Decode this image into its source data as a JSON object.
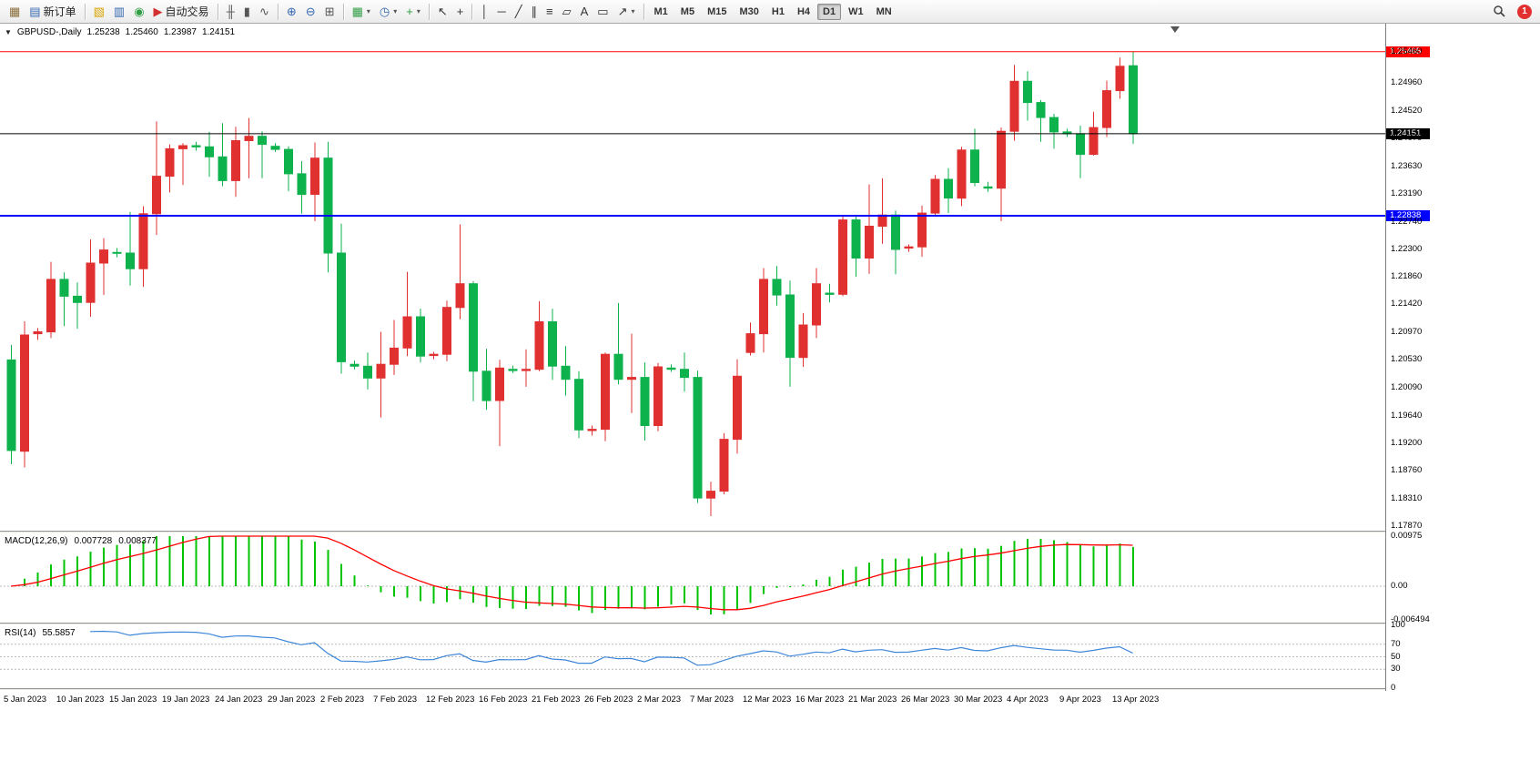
{
  "toolbar": {
    "groups": [
      {
        "items": [
          {
            "name": "new-chart-button",
            "glyph": "▦",
            "color": "#8a6d3b"
          },
          {
            "name": "new-order-button",
            "glyph": "▤",
            "color": "#3367b0",
            "label": "新订单"
          }
        ]
      },
      {
        "items": [
          {
            "name": "profiles-button",
            "glyph": "▧",
            "color": "#d9a400"
          },
          {
            "name": "market-watch-button",
            "glyph": "▥",
            "color": "#3367b0"
          },
          {
            "name": "navigator-button",
            "glyph": "◉",
            "color": "#2f9e44"
          },
          {
            "name": "autotrading-button",
            "glyph": "▶",
            "color": "#d32f2f",
            "label": "自动交易"
          }
        ]
      },
      {
        "items": [
          {
            "name": "bar-chart-mode-button",
            "glyph": "╫",
            "color": "#555555"
          },
          {
            "name": "candle-chart-mode-button",
            "glyph": "▮",
            "color": "#555555"
          },
          {
            "name": "line-chart-mode-button",
            "glyph": "∿",
            "color": "#555555"
          }
        ]
      },
      {
        "items": [
          {
            "name": "zoom-in-button",
            "glyph": "⊕",
            "color": "#3367b0"
          },
          {
            "name": "zoom-out-button",
            "glyph": "⊖",
            "color": "#3367b0"
          },
          {
            "name": "tile-windows-button",
            "glyph": "⊞",
            "color": "#555555"
          }
        ]
      },
      {
        "items": [
          {
            "name": "new-chart-dropdown-button",
            "glyph": "▦",
            "color": "#2f9e44",
            "caret": true
          },
          {
            "name": "periods-dropdown-button",
            "glyph": "◷",
            "color": "#3367b0",
            "caret": true
          },
          {
            "name": "indicators-dropdown-button",
            "glyph": "+",
            "color": "#2f9e44",
            "caret": true
          }
        ]
      },
      {
        "items": [
          {
            "name": "cursor-button",
            "glyph": "↖",
            "color": "#333333"
          },
          {
            "name": "crosshair-button",
            "glyph": "+",
            "color": "#333333"
          }
        ]
      },
      {
        "items": [
          {
            "name": "vertical-line-button",
            "glyph": "│",
            "color": "#333333"
          },
          {
            "name": "horizontal-line-button",
            "glyph": "─",
            "color": "#333333"
          },
          {
            "name": "trendline-button",
            "glyph": "╱",
            "color": "#333333"
          },
          {
            "name": "channel-button",
            "glyph": "∥",
            "color": "#333333"
          },
          {
            "name": "fibonacci-button",
            "glyph": "≡",
            "color": "#333333"
          },
          {
            "name": "shapes-button",
            "glyph": "▱",
            "color": "#333333"
          },
          {
            "name": "text-button",
            "glyph": "A",
            "color": "#333333"
          },
          {
            "name": "text-label-button",
            "glyph": "▭",
            "color": "#333333"
          },
          {
            "name": "arrows-dropdown-button",
            "glyph": "↗",
            "color": "#333333",
            "caret": true
          }
        ]
      }
    ],
    "timeframes": {
      "items": [
        "M1",
        "M5",
        "M15",
        "M30",
        "H1",
        "H4",
        "D1",
        "W1",
        "MN"
      ],
      "active": "D1"
    },
    "notification_count": "1"
  },
  "chart": {
    "info": {
      "expand_icon": "▼",
      "symbol": "GBPUSD-,Daily",
      "open": "1.25238",
      "high": "1.25460",
      "low": "1.23987",
      "close": "1.24151"
    }
  },
  "indicators": {
    "macd": {
      "title": "MACD(12,26,9)",
      "value_main": "0.007728",
      "value_signal": "0.008377",
      "scale": [
        "0.00975",
        "0.00",
        "-0.006494"
      ]
    },
    "rsi": {
      "title": "RSI(14)",
      "value": "55.5857",
      "scale": [
        "100",
        "70",
        "50",
        "30",
        "0"
      ],
      "levels": [
        70,
        50,
        30
      ]
    }
  },
  "chart_data": {
    "type": "candlestick",
    "symbol": "GBPUSD",
    "timeframe": "Daily",
    "note_color_convention": "red = bullish (up), green = bearish (down)",
    "colors": {
      "up": "#e03030",
      "down": "#0db24c",
      "macd_hist": "#00c400",
      "macd_signal": "#ff0000",
      "rsi_line": "#3f87d9"
    },
    "price_axis": {
      "labels": [
        "1.25460",
        "1.24960",
        "1.24520",
        "1.24070",
        "1.23630",
        "1.23190",
        "1.22740",
        "1.22300",
        "1.21860",
        "1.21420",
        "1.20970",
        "1.20530",
        "1.20090",
        "1.19640",
        "1.19200",
        "1.18760",
        "1.18310",
        "1.17870"
      ]
    },
    "hlines": [
      {
        "name": "resistance-line",
        "price": 1.25465,
        "color": "#ff0000",
        "tag": "1.25465",
        "width": 1
      },
      {
        "name": "current-price-line",
        "price": 1.24151,
        "color": "#000000",
        "tag": "1.24151",
        "width": 1
      },
      {
        "name": "support-line",
        "price": 1.22838,
        "color": "#0000ff",
        "tag": "1.22838",
        "width": 2
      }
    ],
    "date_axis": [
      {
        "label": "5 Jan 2023",
        "index": 0
      },
      {
        "label": "10 Jan 2023",
        "index": 4
      },
      {
        "label": "15 Jan 2023",
        "index": 8
      },
      {
        "label": "19 Jan 2023",
        "index": 12
      },
      {
        "label": "24 Jan 2023",
        "index": 16
      },
      {
        "label": "29 Jan 2023",
        "index": 20
      },
      {
        "label": "2 Feb 2023",
        "index": 24
      },
      {
        "label": "7 Feb 2023",
        "index": 28
      },
      {
        "label": "12 Feb 2023",
        "index": 32
      },
      {
        "label": "16 Feb 2023",
        "index": 36
      },
      {
        "label": "21 Feb 2023",
        "index": 40
      },
      {
        "label": "26 Feb 2023",
        "index": 44
      },
      {
        "label": "2 Mar 2023",
        "index": 48
      },
      {
        "label": "7 Mar 2023",
        "index": 52
      },
      {
        "label": "12 Mar 2023",
        "index": 56
      },
      {
        "label": "16 Mar 2023",
        "index": 60
      },
      {
        "label": "21 Mar 2023",
        "index": 64
      },
      {
        "label": "26 Mar 2023",
        "index": 68
      },
      {
        "label": "30 Mar 2023",
        "index": 72
      },
      {
        "label": "4 Apr 2023",
        "index": 76
      },
      {
        "label": "9 Apr 2023",
        "index": 80
      },
      {
        "label": "13 Apr 2023",
        "index": 84
      }
    ],
    "candles": [
      [
        "2023.01.05",
        1.2053,
        1.2077,
        1.1886,
        1.1908
      ],
      [
        "2023.01.06",
        1.1907,
        1.2115,
        1.1881,
        1.2093
      ],
      [
        "2023.01.08",
        1.2095,
        1.2104,
        1.2085,
        1.2098
      ],
      [
        "2023.01.09",
        1.2098,
        1.221,
        1.2088,
        1.2182
      ],
      [
        "2023.01.10",
        1.2182,
        1.2193,
        1.2107,
        1.2155
      ],
      [
        "2023.01.11",
        1.2155,
        1.2177,
        1.2103,
        1.2145
      ],
      [
        "2023.01.12",
        1.2145,
        1.2246,
        1.2122,
        1.2208
      ],
      [
        "2023.01.13",
        1.2208,
        1.2248,
        1.2157,
        1.2229
      ],
      [
        "2023.01.15",
        1.2225,
        1.2232,
        1.2217,
        1.2224
      ],
      [
        "2023.01.16",
        1.2224,
        1.229,
        1.2172,
        1.2199
      ],
      [
        "2023.01.17",
        1.2199,
        1.2299,
        1.217,
        1.2287
      ],
      [
        "2023.01.18",
        1.2287,
        1.2435,
        1.2253,
        1.2347
      ],
      [
        "2023.01.19",
        1.2347,
        1.2398,
        1.2321,
        1.2391
      ],
      [
        "2023.01.20",
        1.2391,
        1.24,
        1.2333,
        1.2396
      ],
      [
        "2023.01.22",
        1.2396,
        1.2402,
        1.2388,
        1.2394
      ],
      [
        "2023.01.23",
        1.2394,
        1.2418,
        1.2346,
        1.2378
      ],
      [
        "2023.01.24",
        1.2378,
        1.2432,
        1.2331,
        1.234
      ],
      [
        "2023.01.25",
        1.234,
        1.2426,
        1.2314,
        1.2404
      ],
      [
        "2023.01.26",
        1.2404,
        1.244,
        1.2344,
        1.2411
      ],
      [
        "2023.01.27",
        1.2411,
        1.2419,
        1.2344,
        1.2398
      ],
      [
        "2023.01.29",
        1.2395,
        1.24,
        1.2386,
        1.239
      ],
      [
        "2023.01.30",
        1.239,
        1.2395,
        1.2323,
        1.2351
      ],
      [
        "2023.01.31",
        1.2351,
        1.2371,
        1.2287,
        1.2318
      ],
      [
        "2023.02.01",
        1.2318,
        1.2401,
        1.2275,
        1.2376
      ],
      [
        "2023.02.02",
        1.2376,
        1.2402,
        1.2193,
        1.2224
      ],
      [
        "2023.02.03",
        1.2224,
        1.2271,
        1.2031,
        1.205
      ],
      [
        "2023.02.05",
        1.2046,
        1.2052,
        1.2038,
        1.2043
      ],
      [
        "2023.02.06",
        1.2043,
        1.2065,
        1.2006,
        1.2024
      ],
      [
        "2023.02.07",
        1.2024,
        1.2098,
        1.1961,
        1.2046
      ],
      [
        "2023.02.08",
        1.2046,
        1.2117,
        1.2029,
        1.2072
      ],
      [
        "2023.02.09",
        1.2072,
        1.2194,
        1.2059,
        1.2122
      ],
      [
        "2023.02.10",
        1.2122,
        1.2135,
        1.2049,
        1.2059
      ],
      [
        "2023.02.12",
        1.206,
        1.2066,
        1.2054,
        1.2062
      ],
      [
        "2023.02.13",
        1.2062,
        1.2148,
        1.2051,
        1.2137
      ],
      [
        "2023.02.14",
        1.2137,
        1.227,
        1.2118,
        1.2175
      ],
      [
        "2023.02.15",
        1.2175,
        1.2179,
        1.1987,
        1.2035
      ],
      [
        "2023.02.16",
        1.2035,
        1.2071,
        1.1973,
        1.1988
      ],
      [
        "2023.02.17",
        1.1988,
        1.2053,
        1.1915,
        1.204
      ],
      [
        "2023.02.19",
        1.2038,
        1.2044,
        1.2032,
        1.2036
      ],
      [
        "2023.02.20",
        1.2036,
        1.207,
        1.201,
        1.2038
      ],
      [
        "2023.02.21",
        1.2038,
        1.2147,
        1.2035,
        1.2114
      ],
      [
        "2023.02.22",
        1.2114,
        1.2135,
        1.2021,
        1.2043
      ],
      [
        "2023.02.23",
        1.2043,
        1.2075,
        1.1996,
        1.2022
      ],
      [
        "2023.02.24",
        1.2022,
        1.2035,
        1.1928,
        1.1941
      ],
      [
        "2023.02.26",
        1.194,
        1.1948,
        1.1932,
        1.1942
      ],
      [
        "2023.02.27",
        1.1942,
        1.2065,
        1.1923,
        1.2062
      ],
      [
        "2023.02.28",
        1.2062,
        1.2144,
        1.2014,
        1.2022
      ],
      [
        "2023.03.01",
        1.2022,
        1.2095,
        1.1968,
        1.2025
      ],
      [
        "2023.03.02",
        1.2025,
        1.2049,
        1.1924,
        1.1948
      ],
      [
        "2023.03.03",
        1.1948,
        1.2048,
        1.1939,
        1.2042
      ],
      [
        "2023.03.05",
        1.204,
        1.2046,
        1.2034,
        1.2038
      ],
      [
        "2023.03.06",
        1.2038,
        1.2065,
        1.2002,
        1.2025
      ],
      [
        "2023.03.07",
        1.2025,
        1.2036,
        1.1824,
        1.1832
      ],
      [
        "2023.03.08",
        1.1832,
        1.1858,
        1.1803,
        1.1843
      ],
      [
        "2023.03.09",
        1.1843,
        1.1936,
        1.1838,
        1.1926
      ],
      [
        "2023.03.10",
        1.1926,
        1.2054,
        1.1903,
        1.2027
      ],
      [
        "2023.03.12",
        1.2065,
        1.2113,
        1.206,
        1.2095
      ],
      [
        "2023.03.13",
        1.2095,
        1.22,
        1.2065,
        1.2182
      ],
      [
        "2023.03.14",
        1.2182,
        1.2203,
        1.214,
        1.2157
      ],
      [
        "2023.03.15",
        1.2157,
        1.218,
        1.201,
        1.2057
      ],
      [
        "2023.03.16",
        1.2057,
        1.2128,
        1.2042,
        1.2109
      ],
      [
        "2023.03.17",
        1.2109,
        1.22,
        1.2088,
        1.2175
      ],
      [
        "2023.03.19",
        1.216,
        1.2175,
        1.2145,
        1.2158
      ],
      [
        "2023.03.20",
        1.2158,
        1.2285,
        1.2155,
        1.2277
      ],
      [
        "2023.03.21",
        1.2277,
        1.2283,
        1.2186,
        1.2216
      ],
      [
        "2023.03.22",
        1.2216,
        1.2334,
        1.2191,
        1.2267
      ],
      [
        "2023.03.23",
        1.2267,
        1.2344,
        1.2239,
        1.2285
      ],
      [
        "2023.03.24",
        1.2285,
        1.2292,
        1.219,
        1.223
      ],
      [
        "2023.03.26",
        1.2232,
        1.2238,
        1.2226,
        1.2234
      ],
      [
        "2023.03.27",
        1.2234,
        1.23,
        1.2218,
        1.2288
      ],
      [
        "2023.03.28",
        1.2288,
        1.2349,
        1.2283,
        1.2342
      ],
      [
        "2023.03.29",
        1.2342,
        1.236,
        1.2288,
        1.2312
      ],
      [
        "2023.03.30",
        1.2312,
        1.2394,
        1.2299,
        1.2389
      ],
      [
        "2023.03.31",
        1.2389,
        1.2423,
        1.2331,
        1.2337
      ],
      [
        "2023.04.02",
        1.233,
        1.2338,
        1.2322,
        1.2328
      ],
      [
        "2023.04.03",
        1.2328,
        1.2425,
        1.2275,
        1.2419
      ],
      [
        "2023.04.04",
        1.2419,
        1.2525,
        1.2404,
        1.2499
      ],
      [
        "2023.04.05",
        1.2499,
        1.2515,
        1.2436,
        1.2465
      ],
      [
        "2023.04.06",
        1.2465,
        1.2469,
        1.2402,
        1.2441
      ],
      [
        "2023.04.07",
        1.2441,
        1.2447,
        1.2391,
        1.2418
      ],
      [
        "2023.04.09",
        1.2418,
        1.2423,
        1.241,
        1.2415
      ],
      [
        "2023.04.10",
        1.2415,
        1.2428,
        1.2344,
        1.2382
      ],
      [
        "2023.04.11",
        1.2382,
        1.245,
        1.238,
        1.2425
      ],
      [
        "2023.04.12",
        1.2425,
        1.25,
        1.241,
        1.2484
      ],
      [
        "2023.04.13",
        1.2484,
        1.2537,
        1.2471,
        1.2523
      ],
      [
        "2023.04.14",
        1.25238,
        1.2546,
        1.23987,
        1.24151
      ]
    ]
  }
}
